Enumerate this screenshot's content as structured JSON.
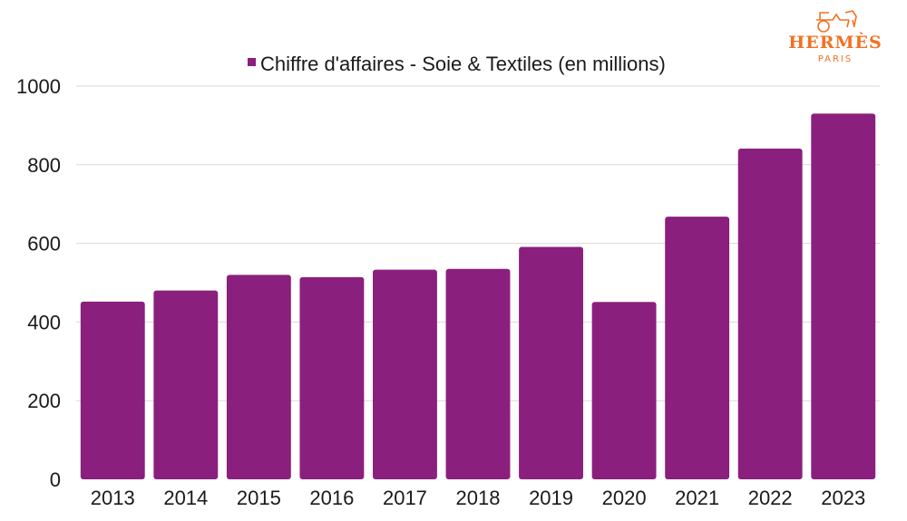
{
  "brand": {
    "name": "HERMÈS",
    "sub": "PARIS",
    "color": "#f37021"
  },
  "chart_data": {
    "type": "bar",
    "categories": [
      "2013",
      "2014",
      "2015",
      "2016",
      "2017",
      "2018",
      "2019",
      "2020",
      "2021",
      "2022",
      "2023"
    ],
    "series": [
      {
        "name": "Chiffre d'affaires - Soie & Textiles (en millions)",
        "values": [
          452,
          480,
          520,
          514,
          533,
          535,
          591,
          451,
          668,
          841,
          930
        ],
        "color": "#8b1f7d"
      }
    ],
    "yticks": [
      0,
      200,
      400,
      600,
      800,
      1000
    ],
    "ylim": [
      0,
      1000
    ],
    "grid": true,
    "legend": "top-center"
  }
}
